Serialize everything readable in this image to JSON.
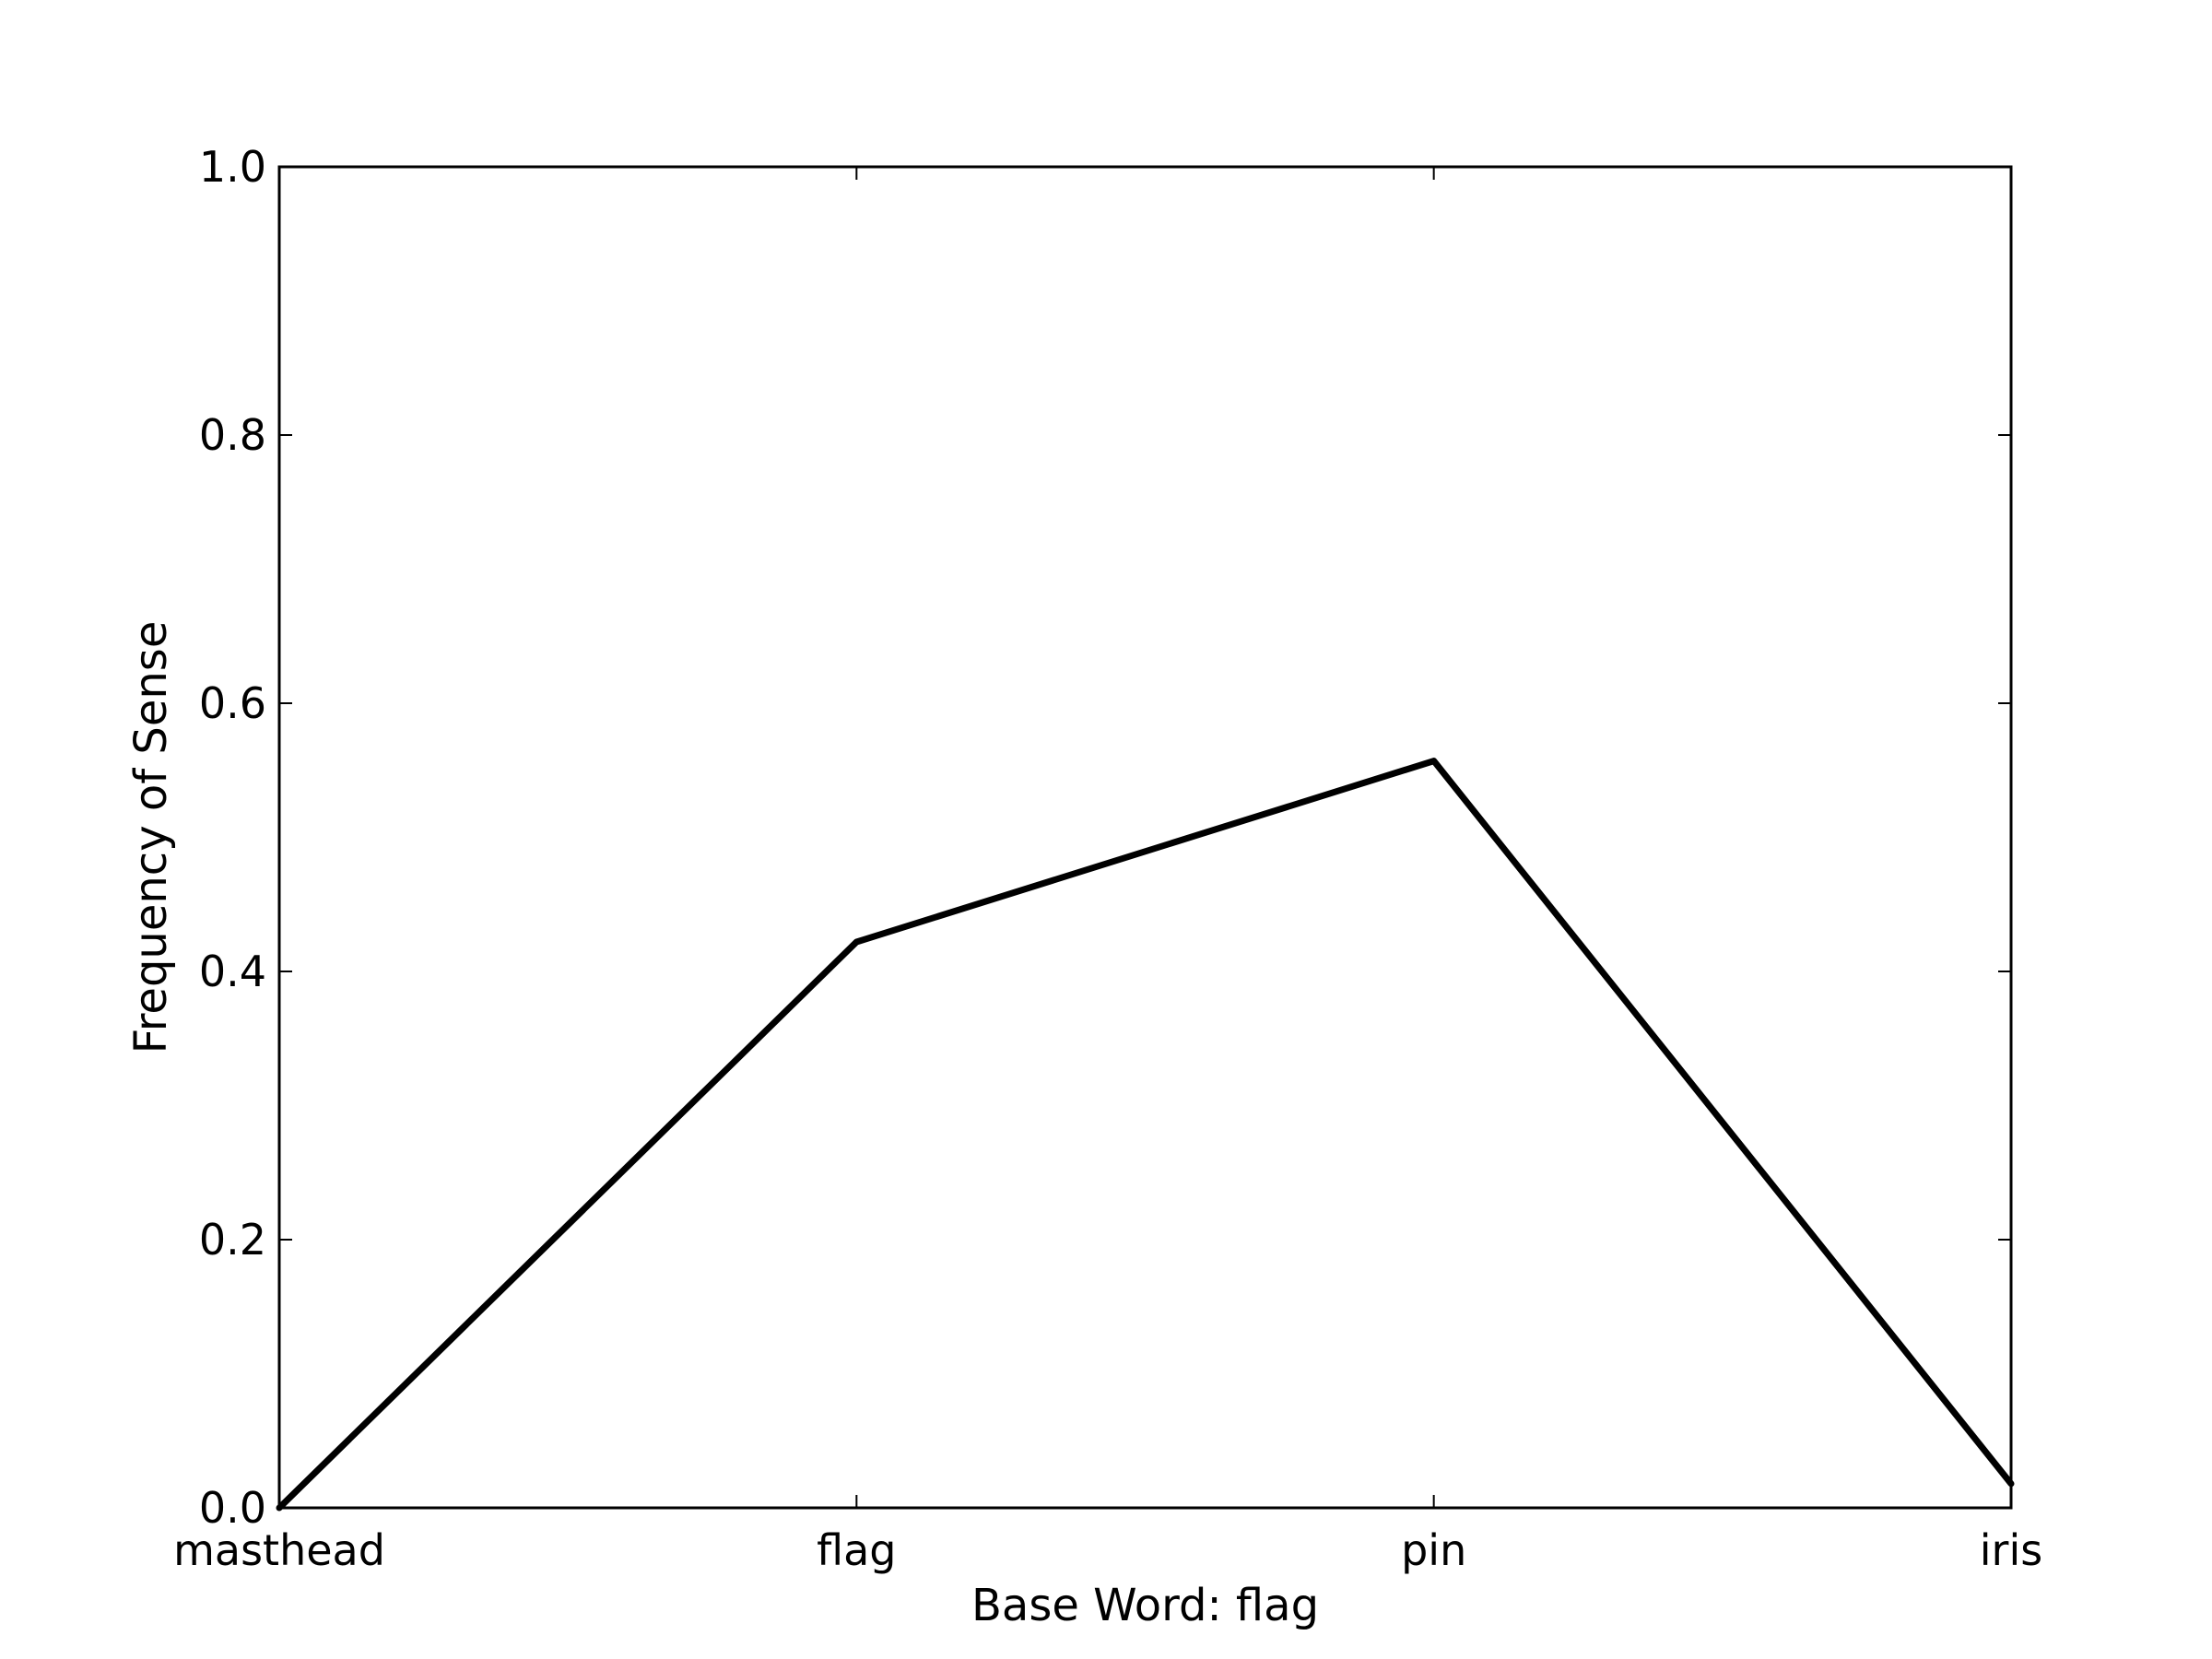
{
  "chart_data": {
    "type": "line",
    "title": "",
    "xlabel": "Base Word: flag",
    "ylabel": "Frequency of Sense",
    "categories": [
      "masthead",
      "flag",
      "pin",
      "iris"
    ],
    "series": [
      {
        "values": [
          0.0,
          0.422,
          0.557,
          0.018
        ],
        "color": "#000000"
      }
    ],
    "ylim": [
      0,
      1.0
    ],
    "yticks": [
      "0.0",
      "0.2",
      "0.4",
      "0.6",
      "0.8",
      "1.0"
    ],
    "ytick_values": [
      0.0,
      0.2,
      0.4,
      0.6,
      0.8,
      1.0
    ],
    "grid": false,
    "legend": "none"
  },
  "colors": {
    "axes": "#000000",
    "background": "#ffffff"
  }
}
